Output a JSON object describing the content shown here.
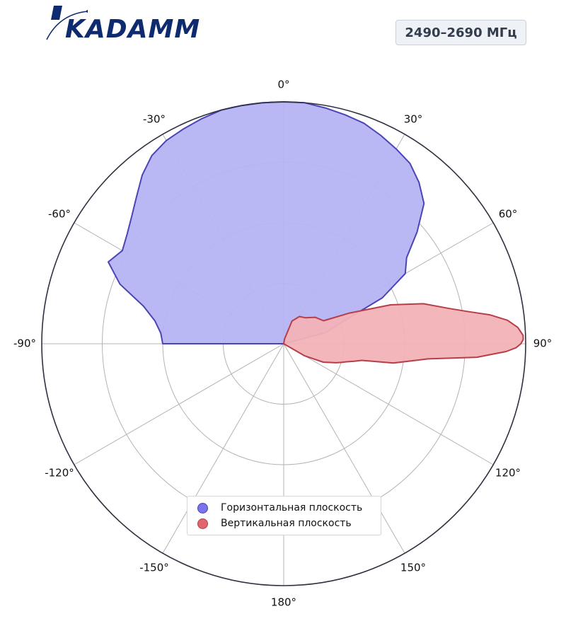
{
  "header": {
    "logo_text": "KADAMM",
    "frequency_band": "2490–2690 МГц"
  },
  "colors": {
    "horizontal_fill": "#b5b4f4",
    "horizontal_line": "#4a44b4",
    "vertical_fill": "#f2b2b7",
    "vertical_line": "#b73e48",
    "legend_h_dot": "#7b74ea",
    "legend_v_dot": "#e0656e",
    "logo_blue": "#0d2b6e"
  },
  "chart_data": {
    "type": "polar",
    "angle_labels": [
      "0°",
      "30°",
      "60°",
      "90°",
      "120°",
      "150°",
      "180°",
      "-150°",
      "-120°",
      "-90°",
      "-60°",
      "-30°"
    ],
    "angle_ticks": [
      0,
      30,
      60,
      90,
      120,
      150,
      180,
      -150,
      -120,
      -90,
      -60,
      -30
    ],
    "radial_range": [
      0,
      1
    ],
    "radial_rings": [
      0.25,
      0.5,
      0.75,
      1.0
    ],
    "grid": true,
    "legend_position": "bottom-center",
    "series": [
      {
        "name": "Горизонтальная плоскость",
        "theta": [
          -90,
          -85,
          -80,
          -75,
          -70,
          -65,
          -60,
          -55,
          -50,
          -45,
          -40,
          -35,
          -30,
          -25,
          -20,
          -15,
          -10,
          -5,
          0,
          5,
          10,
          15,
          20,
          25,
          30,
          35,
          40,
          45,
          50,
          55,
          60,
          65,
          70,
          75,
          90
        ],
        "r": [
          0.5,
          0.51,
          0.54,
          0.6,
          0.72,
          0.8,
          0.77,
          0.79,
          0.82,
          0.86,
          0.91,
          0.95,
          0.97,
          0.98,
          0.99,
          1.0,
          1.0,
          1.0,
          1.0,
          1.0,
          0.99,
          0.98,
          0.97,
          0.95,
          0.93,
          0.91,
          0.87,
          0.82,
          0.72,
          0.62,
          0.58,
          0.45,
          0.25,
          0.18,
          0.0
        ]
      },
      {
        "name": "Вертикальная плоскость",
        "theta": [
          0,
          10,
          20,
          30,
          40,
          50,
          60,
          65,
          70,
          74,
          78,
          80,
          82,
          84,
          86,
          88,
          89,
          90,
          91,
          92,
          94,
          96,
          98,
          100,
          102,
          104,
          106,
          108,
          110,
          115,
          120,
          180
        ],
        "r": [
          0.0,
          0.02,
          0.1,
          0.13,
          0.14,
          0.17,
          0.19,
          0.3,
          0.47,
          0.6,
          0.7,
          0.77,
          0.86,
          0.93,
          0.97,
          0.99,
          0.99,
          0.98,
          0.96,
          0.92,
          0.8,
          0.6,
          0.52,
          0.46,
          0.33,
          0.3,
          0.27,
          0.25,
          0.23,
          0.18,
          0.1,
          0.0
        ]
      }
    ]
  }
}
